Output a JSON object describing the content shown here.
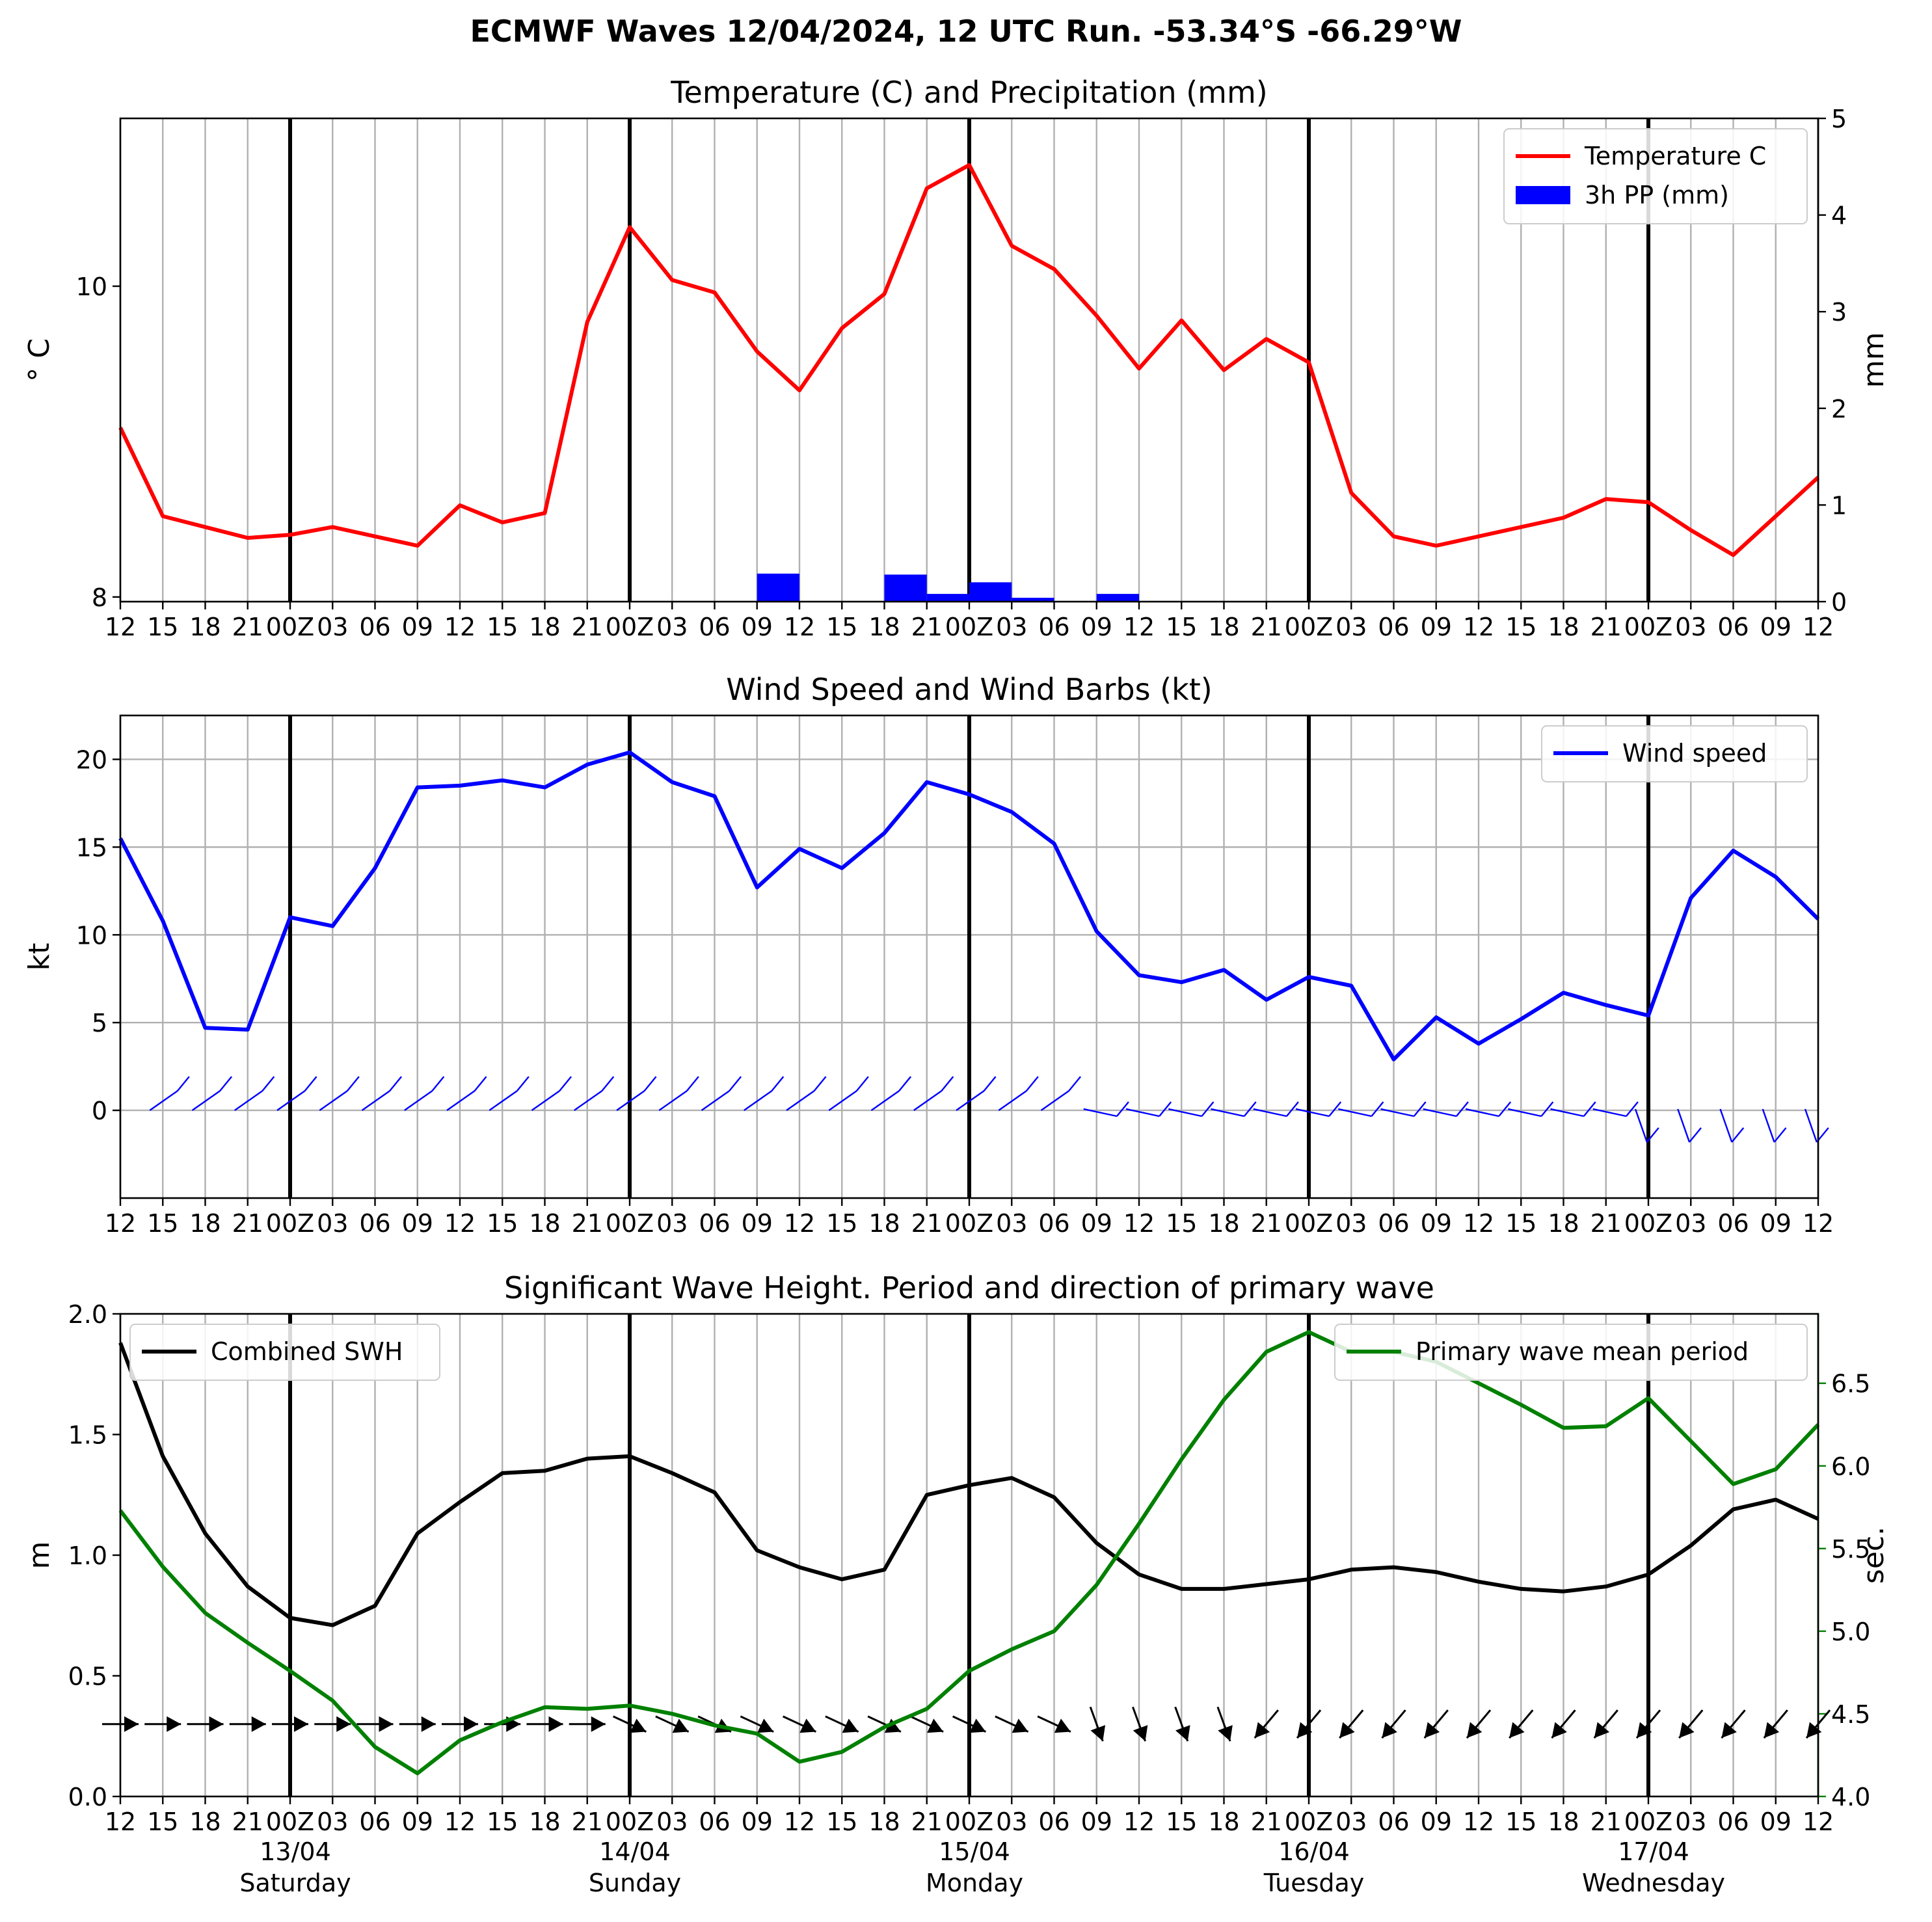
{
  "figure_title": "ECMWF Waves 12/04/2024, 12 UTC Run. -53.34°S -66.29°W",
  "x_ticks": [
    "12",
    "15",
    "18",
    "21",
    "00Z",
    "03",
    "06",
    "09",
    "12",
    "15",
    "18",
    "21",
    "00Z",
    "03",
    "06",
    "09",
    "12",
    "15",
    "18",
    "21",
    "00Z",
    "03",
    "06",
    "09",
    "12",
    "15",
    "18",
    "21",
    "00Z",
    "03",
    "06",
    "09",
    "12",
    "15",
    "18",
    "21",
    "00Z",
    "03",
    "06",
    "09",
    "12"
  ],
  "day_labels": [
    {
      "date": "13/04",
      "day": "Saturday",
      "tick_index": 4
    },
    {
      "date": "14/04",
      "day": "Sunday",
      "tick_index": 12
    },
    {
      "date": "15/04",
      "day": "Monday",
      "tick_index": 20
    },
    {
      "date": "16/04",
      "day": "Tuesday",
      "tick_index": 28
    },
    {
      "date": "17/04",
      "day": "Wednesday",
      "tick_index": 36
    }
  ],
  "colors": {
    "temperature": "#ff0000",
    "precip": "#0000ff",
    "wind": "#0000ff",
    "swh": "#000000",
    "period": "#008000",
    "grid": "#b0b0b0",
    "day_line": "#000000"
  },
  "chart_data": [
    {
      "type": "line",
      "title": "Temperature (C) and Precipitation (mm)",
      "ylabel": "° C",
      "ylabel_right": "mm",
      "ylim": [
        7.97,
        11.08
      ],
      "yticks": [
        8,
        10
      ],
      "ylim_right": [
        0,
        5
      ],
      "yticks_right": [
        0,
        1,
        2,
        3,
        4,
        5
      ],
      "grid": "vertical",
      "legend_position": "top-right",
      "series": [
        {
          "name": "Temperature C",
          "axis": "left",
          "values": [
            9.09,
            8.52,
            8.45,
            8.38,
            8.4,
            8.45,
            8.39,
            8.33,
            8.59,
            8.48,
            8.54,
            9.77,
            10.38,
            10.04,
            9.96,
            9.58,
            9.33,
            9.73,
            9.95,
            10.63,
            10.78,
            10.26,
            10.11,
            9.81,
            9.47,
            9.78,
            9.46,
            9.66,
            9.51,
            8.67,
            8.39,
            8.33,
            8.39,
            8.45,
            8.51,
            8.63,
            8.61,
            8.43,
            8.27,
            8.52,
            8.77
          ]
        },
        {
          "name": "3h PP (mm)",
          "axis": "right",
          "type": "bar",
          "values": [
            0,
            0,
            0,
            0,
            0,
            0,
            0,
            0,
            0,
            0,
            0,
            0,
            0,
            0,
            0,
            0,
            0.29,
            0,
            0,
            0.28,
            0.08,
            0.2,
            0.04,
            0,
            0.08,
            0,
            0,
            0,
            0,
            0,
            0,
            0,
            0,
            0,
            0,
            0,
            0,
            0,
            0,
            0,
            0
          ]
        }
      ]
    },
    {
      "type": "line",
      "title": "Wind Speed and Wind Barbs (kt)",
      "ylabel": "kt",
      "ylim": [
        -5,
        22.5
      ],
      "yticks": [
        0,
        5,
        10,
        15,
        20
      ],
      "grid": "both",
      "legend_position": "top-right",
      "series": [
        {
          "name": "Wind speed",
          "values": [
            15.5,
            10.8,
            4.7,
            4.6,
            11.0,
            10.5,
            13.8,
            18.4,
            18.5,
            18.8,
            18.4,
            19.7,
            20.4,
            18.7,
            17.9,
            12.7,
            14.9,
            13.8,
            15.8,
            18.7,
            18.0,
            17.0,
            15.2,
            10.2,
            7.7,
            7.3,
            8.0,
            6.3,
            7.6,
            7.1,
            2.9,
            5.3,
            3.8,
            5.2,
            6.7,
            6.0,
            5.4,
            12.1,
            14.8,
            13.3,
            10.9
          ]
        }
      ],
      "barbs_note": "wind barbs along y=0 at each 3h step"
    },
    {
      "type": "line",
      "title": "Significant Wave Height. Period and direction of primary wave",
      "ylabel": "m",
      "ylabel_right": "sec.",
      "ylim": [
        0,
        2.0
      ],
      "yticks": [
        0.0,
        0.5,
        1.0,
        1.5,
        2.0
      ],
      "ylim_right": [
        4.0,
        6.92
      ],
      "yticks_right": [
        4.0,
        4.5,
        5.0,
        5.5,
        6.0,
        6.5
      ],
      "grid": "vertical",
      "legend_positions": [
        "top-left",
        "top-right"
      ],
      "series": [
        {
          "name": "Combined SWH",
          "axis": "left",
          "values": [
            1.88,
            1.41,
            1.09,
            0.87,
            0.74,
            0.71,
            0.79,
            1.09,
            1.22,
            1.34,
            1.35,
            1.4,
            1.41,
            1.34,
            1.26,
            1.02,
            0.95,
            0.9,
            0.94,
            1.25,
            1.29,
            1.32,
            1.24,
            1.05,
            0.92,
            0.86,
            0.86,
            0.88,
            0.9,
            0.94,
            0.95,
            0.93,
            0.89,
            0.86,
            0.85,
            0.87,
            0.92,
            1.04,
            1.19,
            1.23,
            1.15
          ]
        },
        {
          "name": "Primary wave mean period",
          "axis": "right",
          "values": [
            5.73,
            5.39,
            5.11,
            4.93,
            4.76,
            4.58,
            4.3,
            4.14,
            4.34,
            4.45,
            4.54,
            4.53,
            4.55,
            4.5,
            4.43,
            4.38,
            4.21,
            4.27,
            4.42,
            4.53,
            4.76,
            4.89,
            5.0,
            5.28,
            5.65,
            6.04,
            6.4,
            6.69,
            6.81,
            6.69,
            6.69,
            6.63,
            6.5,
            6.37,
            6.23,
            6.24,
            6.41,
            6.15,
            5.89,
            5.98,
            6.25
          ]
        }
      ],
      "direction_arrows_note": "primary wave direction arrows along y≈0.3 m"
    }
  ]
}
